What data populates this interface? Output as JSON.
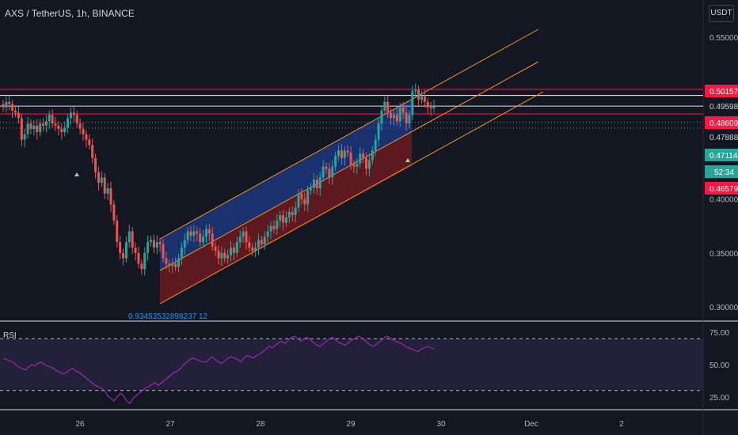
{
  "header": {
    "title": "AXS / TetherUS, 1h, BINANCE",
    "currency": "USDT"
  },
  "annotations": {
    "fib_value": "0.93453532898237 12",
    "rsi_label": "RSI"
  },
  "colors": {
    "up": "#26a69a",
    "down": "#ef5350",
    "channel": "#f7931a",
    "channel_fill_top": "#2962ff",
    "channel_fill_bottom": "#b71c1c",
    "rsi_line": "#9c27b0",
    "rsi_band": "#7e57c2"
  },
  "chart_data": [
    {
      "type": "candlestick",
      "title": "AXS / TetherUS, 1h, BINANCE",
      "xlabel": "",
      "ylabel": "",
      "ylim": [
        0.28,
        0.58
      ],
      "y_ticks": [
        "0.55000",
        "0.40000",
        "0.35000",
        "0.30000"
      ],
      "x_ticks": [
        "26",
        "27",
        "28",
        "29",
        "30",
        "Dec",
        "2"
      ],
      "price_labels": [
        {
          "text": "0.50157",
          "style": "red"
        },
        {
          "text": "0.49598",
          "style": "plain"
        },
        {
          "text": "0.48609",
          "style": "red"
        },
        {
          "text": "0.47888",
          "style": "plain"
        },
        {
          "text": "0.47114",
          "style": "green"
        },
        {
          "text": "52:34",
          "style": "green"
        },
        {
          "text": "0.46579",
          "style": "red"
        }
      ],
      "horizontal_levels": [
        0.5016,
        0.496,
        0.4861,
        0.4789
      ],
      "candles_close": [
        0.485,
        0.49,
        0.488,
        0.482,
        0.48,
        0.475,
        0.455,
        0.46,
        0.47,
        0.465,
        0.468,
        0.462,
        0.47,
        0.468,
        0.472,
        0.478,
        0.47,
        0.468,
        0.465,
        0.462,
        0.466,
        0.475,
        0.48,
        0.478,
        0.47,
        0.465,
        0.46,
        0.455,
        0.45,
        0.438,
        0.425,
        0.415,
        0.42,
        0.405,
        0.41,
        0.395,
        0.38,
        0.36,
        0.35,
        0.345,
        0.36,
        0.37,
        0.355,
        0.35,
        0.34,
        0.335,
        0.35,
        0.36,
        0.362,
        0.355,
        0.36,
        0.358,
        0.345,
        0.34,
        0.338,
        0.34,
        0.337,
        0.345,
        0.355,
        0.362,
        0.37,
        0.366,
        0.37,
        0.368,
        0.36,
        0.365,
        0.372,
        0.368,
        0.356,
        0.352,
        0.345,
        0.35,
        0.345,
        0.348,
        0.355,
        0.35,
        0.36,
        0.365,
        0.37,
        0.36,
        0.355,
        0.352,
        0.355,
        0.362,
        0.358,
        0.365,
        0.37,
        0.375,
        0.372,
        0.38,
        0.385,
        0.378,
        0.383,
        0.388,
        0.385,
        0.392,
        0.405,
        0.4,
        0.395,
        0.408,
        0.41,
        0.418,
        0.41,
        0.42,
        0.43,
        0.428,
        0.42,
        0.43,
        0.44,
        0.445,
        0.438,
        0.445,
        0.443,
        0.432,
        0.43,
        0.433,
        0.442,
        0.438,
        0.428,
        0.436,
        0.445,
        0.455,
        0.47,
        0.482,
        0.49,
        0.48,
        0.475,
        0.478,
        0.472,
        0.485,
        0.48,
        0.47,
        0.478,
        0.5,
        0.501,
        0.492,
        0.495,
        0.49,
        0.485,
        0.484,
        0.486
      ],
      "rsi": {
        "ylim": [
          10,
          80
        ],
        "y_ticks": [
          "75.00",
          "50.00",
          "25.00"
        ],
        "bands": [
          70,
          30
        ],
        "values": [
          55,
          54,
          53,
          52,
          50,
          48,
          47,
          46,
          48,
          50,
          49,
          51,
          52,
          50,
          49,
          48,
          47,
          45,
          44,
          43,
          44,
          46,
          47,
          45,
          44,
          42,
          40,
          38,
          36,
          34,
          33,
          32,
          30,
          26,
          24,
          22,
          25,
          28,
          26,
          22,
          20,
          24,
          26,
          28,
          30,
          32,
          33,
          35,
          36,
          34,
          36,
          38,
          40,
          42,
          44,
          45,
          47,
          50,
          52,
          54,
          55,
          54,
          53,
          52,
          52,
          54,
          56,
          54,
          52,
          51,
          53,
          55,
          56,
          55,
          54,
          52,
          55,
          57,
          56,
          55,
          57,
          58,
          60,
          62,
          64,
          63,
          65,
          67,
          68,
          66,
          69,
          71,
          72,
          70,
          68,
          70,
          71,
          69,
          67,
          65,
          64,
          66,
          68,
          70,
          71,
          69,
          67,
          66,
          65,
          67,
          69,
          70,
          72,
          71,
          69,
          67,
          65,
          64,
          66,
          68,
          70,
          72,
          71,
          69,
          68,
          67,
          66,
          64,
          63,
          62,
          61,
          60,
          62,
          63,
          64,
          63,
          62
        ]
      }
    }
  ]
}
